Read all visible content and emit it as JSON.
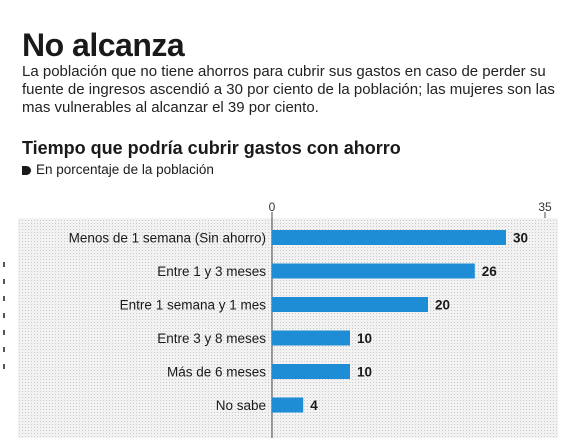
{
  "header": {
    "title": "No alcanza",
    "intro": "La población que no tiene ahorros para cubrir sus gastos en caso de perder su fuente de ingresos ascendió a 30 por ciento de la población; las mujeres son las mas vulnerables al alcanzar el 39 por ciento."
  },
  "chart_data": {
    "type": "bar",
    "orientation": "horizontal",
    "title": "Tiempo que podría cubrir gastos con ahorro",
    "subtitle": "En porcentaje de la población",
    "categories": [
      "Menos de 1 semana (Sin ahorro)",
      "Entre 1 y 3 meses",
      "Entre 1 semana y 1 mes",
      "Entre 3 y 8 meses",
      "Más de 6 meses",
      "No sabe"
    ],
    "values": [
      30,
      26,
      20,
      10,
      10,
      4
    ],
    "xlim": [
      0,
      35
    ],
    "ticks": [
      "0",
      "35"
    ],
    "bar_color": "#1f8dd6",
    "grid": false
  }
}
